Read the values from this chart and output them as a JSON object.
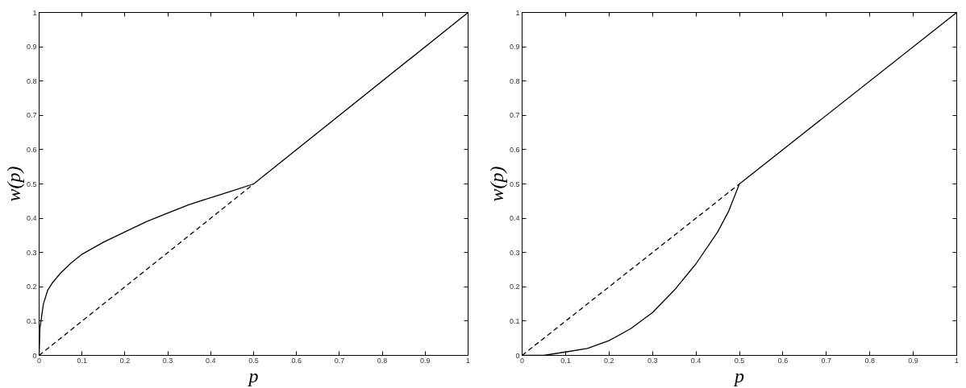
{
  "chart_data": [
    {
      "type": "line",
      "xlabel": "p",
      "ylabel": "w(p)",
      "xlim": [
        0,
        1
      ],
      "ylim": [
        0,
        1
      ],
      "xticks": [
        0,
        0.1,
        0.2,
        0.3,
        0.4,
        0.5,
        0.6,
        0.7,
        0.8,
        0.9,
        1
      ],
      "yticks": [
        0,
        0.1,
        0.2,
        0.3,
        0.4,
        0.5,
        0.6,
        0.7,
        0.8,
        0.9,
        1
      ],
      "grid": false,
      "series": [
        {
          "color": "#000000",
          "line_style": "solid",
          "x": [
            0,
            0.002,
            0.01,
            0.02,
            0.03,
            0.05,
            0.075,
            0.1,
            0.15,
            0.2,
            0.25,
            0.3,
            0.35,
            0.4,
            0.45,
            0.5,
            1
          ],
          "values": [
            0,
            0.08,
            0.15,
            0.19,
            0.21,
            0.24,
            0.27,
            0.295,
            0.33,
            0.36,
            0.39,
            0.415,
            0.44,
            0.46,
            0.48,
            0.5,
            1
          ]
        },
        {
          "color": "#000000",
          "line_style": "dashed",
          "x": [
            0,
            0.5
          ],
          "values": [
            0,
            0.5
          ]
        }
      ]
    },
    {
      "type": "line",
      "xlabel": "p",
      "ylabel": "w(p)",
      "xlim": [
        0,
        1
      ],
      "ylim": [
        0,
        1
      ],
      "xticks": [
        0,
        0.1,
        0.2,
        0.3,
        0.4,
        0.5,
        0.6,
        0.7,
        0.8,
        0.9,
        1
      ],
      "yticks": [
        0,
        0.1,
        0.2,
        0.3,
        0.4,
        0.5,
        0.6,
        0.7,
        0.8,
        0.9,
        1
      ],
      "grid": false,
      "series": [
        {
          "color": "#000000",
          "line_style": "solid",
          "x": [
            0,
            0.05,
            0.1,
            0.15,
            0.2,
            0.25,
            0.3,
            0.35,
            0.4,
            0.45,
            0.475,
            0.5,
            1
          ],
          "values": [
            0,
            0,
            0.01,
            0.02,
            0.043,
            0.078,
            0.125,
            0.19,
            0.267,
            0.36,
            0.42,
            0.5,
            1
          ]
        },
        {
          "color": "#000000",
          "line_style": "dashed",
          "x": [
            0,
            0.5
          ],
          "values": [
            0,
            0.5
          ]
        }
      ]
    }
  ]
}
